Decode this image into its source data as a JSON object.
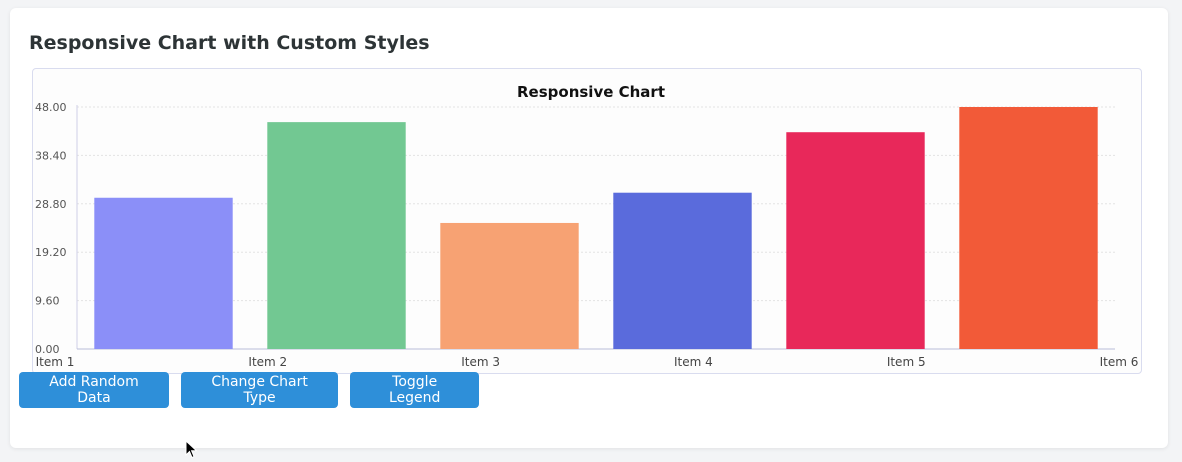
{
  "page": {
    "title": "Responsive Chart with Custom Styles"
  },
  "buttons": {
    "add_random": "Add Random Data",
    "change_type": "Change Chart Type",
    "toggle_legend": "Toggle Legend"
  },
  "chart_data": {
    "type": "bar",
    "title": "Responsive Chart",
    "xlabel": "",
    "ylabel": "",
    "categories": [
      "Item 1",
      "Item 2",
      "Item 3",
      "Item 4",
      "Item 5",
      "Item 6"
    ],
    "values": [
      30,
      45,
      25,
      31,
      43,
      48
    ],
    "colors": [
      "#8b8ff8",
      "#72c892",
      "#f7a273",
      "#5a6bdc",
      "#e8285a",
      "#f25a38"
    ],
    "y_ticks": [
      "0.00",
      "9.60",
      "19.20",
      "28.80",
      "38.40",
      "48.00"
    ],
    "ylim": [
      0,
      48
    ],
    "grid": true,
    "legend": "hidden"
  }
}
